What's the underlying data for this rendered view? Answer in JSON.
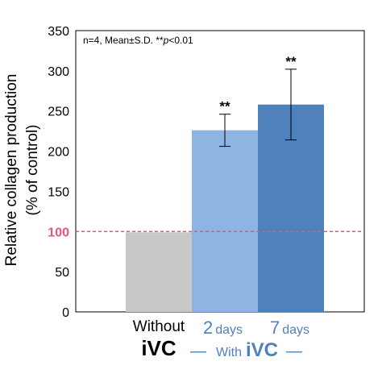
{
  "chart_data": {
    "type": "bar",
    "ylabel_lines": [
      "Relative collagen production",
      "(% of control)"
    ],
    "ylim": [
      0,
      350
    ],
    "yticks": [
      "0",
      "50",
      "100",
      "150",
      "200",
      "250",
      "300",
      "350"
    ],
    "annotation": {
      "prefix": "n=4, Mean±S.D. **",
      "italic": "p",
      "suffix": "<0.01"
    },
    "reference_line": {
      "value": 100,
      "label": "100",
      "color": "#e8547b"
    },
    "grid": false,
    "legend": "none",
    "categories": [
      {
        "line1": "Without",
        "line2": "iVC",
        "value": 99,
        "error": 0,
        "sig": "",
        "color": "#c8c8c8"
      },
      {
        "num": "2",
        "unit": "days",
        "value": 226,
        "error": 20,
        "sig": "**",
        "color": "#8eb4e3"
      },
      {
        "num": "7",
        "unit": "days",
        "value": 258,
        "error": 44,
        "sig": "**",
        "color": "#4f81bd"
      }
    ],
    "group_label": {
      "prefix": "With",
      "bold": "iVC",
      "dash": "—",
      "color": "#4f81bd"
    }
  }
}
